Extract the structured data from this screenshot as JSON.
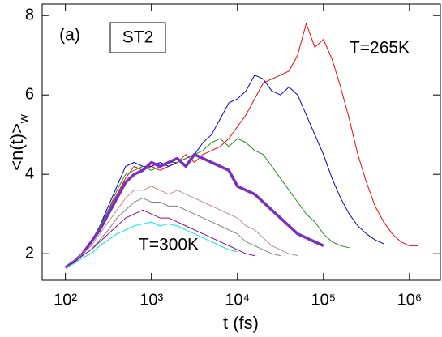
{
  "chart_data": {
    "type": "line",
    "xscale": "log",
    "xlabel": "t (fs)",
    "ylabel": "<n(t)>",
    "ylabel_sub": "w",
    "annotations": [
      "(a)",
      "ST2",
      "T=265K",
      "T=300K"
    ],
    "xlim": [
      53.7,
      2290000
    ],
    "ylim": [
      1.33,
      8.29
    ],
    "xticks": [
      {
        "value": 100,
        "label": "10²"
      },
      {
        "value": 1000,
        "label": "10³"
      },
      {
        "value": 10000,
        "label": "10⁴"
      },
      {
        "value": 100000,
        "label": "10⁵"
      },
      {
        "value": 1000000,
        "label": "10⁶"
      }
    ],
    "yticks": [
      2,
      4,
      6,
      8
    ],
    "series": [
      {
        "color": "#ff0000",
        "linewidth": 1,
        "x": [
          100,
          126,
          158,
          200,
          251,
          316,
          398,
          501,
          631,
          794,
          1000,
          1259,
          1585,
          1995,
          2512,
          3162,
          3981,
          5012,
          6310,
          7943,
          10000,
          12589,
          15849,
          19953,
          25119,
          31623,
          39811,
          50119,
          63096,
          79433,
          100000,
          125893,
          158489,
          199526,
          251189,
          316228,
          398107,
          501187,
          630957,
          794328,
          1000000,
          1258925
        ],
        "values": [
          1.65,
          1.8,
          2.0,
          2.3,
          2.7,
          3.1,
          3.5,
          3.9,
          4.2,
          4.1,
          4.2,
          4.1,
          4.2,
          4.3,
          4.5,
          4.3,
          4.5,
          4.6,
          4.7,
          4.9,
          5.2,
          5.5,
          5.9,
          6.3,
          6.4,
          6.5,
          6.6,
          7.0,
          7.8,
          7.2,
          7.4,
          6.9,
          6.2,
          5.4,
          4.5,
          3.8,
          3.2,
          2.8,
          2.5,
          2.3,
          2.2,
          2.2
        ]
      },
      {
        "color": "#0000dd",
        "linewidth": 1,
        "x": [
          100,
          126,
          158,
          200,
          251,
          316,
          398,
          501,
          631,
          794,
          1000,
          1259,
          1585,
          1995,
          2512,
          3162,
          3981,
          5012,
          6310,
          7943,
          10000,
          12589,
          15849,
          19953,
          25119,
          31623,
          39811,
          50119,
          63096,
          79433,
          100000,
          125893,
          158489,
          199526,
          251189,
          316228,
          398107,
          501187
        ],
        "values": [
          1.65,
          1.8,
          2.0,
          2.3,
          2.7,
          3.2,
          3.7,
          4.2,
          4.3,
          4.2,
          4.2,
          4.3,
          4.2,
          4.3,
          4.4,
          4.5,
          4.8,
          5.0,
          5.4,
          5.8,
          5.9,
          6.1,
          6.5,
          6.4,
          6.1,
          6.0,
          6.2,
          6.0,
          5.5,
          5.0,
          4.5,
          3.9,
          3.4,
          3.0,
          2.7,
          2.5,
          2.35,
          2.25
        ]
      },
      {
        "color": "#228b22",
        "linewidth": 1,
        "x": [
          100,
          126,
          158,
          200,
          251,
          316,
          398,
          501,
          631,
          794,
          1000,
          1259,
          1585,
          1995,
          2512,
          3162,
          3981,
          5012,
          6310,
          7943,
          10000,
          12589,
          15849,
          19953,
          25119,
          31623,
          39811,
          50119,
          63096,
          79433,
          100000,
          125893,
          158489,
          199526
        ],
        "values": [
          1.65,
          1.8,
          2.0,
          2.3,
          2.7,
          3.1,
          3.6,
          4.0,
          4.1,
          4.2,
          4.1,
          4.2,
          4.3,
          4.3,
          4.4,
          4.5,
          4.6,
          4.8,
          4.9,
          4.7,
          4.9,
          4.8,
          4.6,
          4.5,
          4.2,
          3.9,
          3.6,
          3.3,
          3.0,
          2.8,
          2.5,
          2.3,
          2.2,
          2.15
        ]
      },
      {
        "color": "#7b2fbe",
        "linewidth": 3.5,
        "x": [
          100,
          126,
          158,
          200,
          251,
          316,
          398,
          501,
          631,
          794,
          1000,
          1259,
          1585,
          1995,
          2512,
          3162,
          3981,
          5012,
          6310,
          7943,
          10000,
          12589,
          15849,
          19953,
          25119,
          31623,
          39811,
          50119,
          63096,
          79433,
          100000
        ],
        "values": [
          1.65,
          1.8,
          2.0,
          2.3,
          2.6,
          3.0,
          3.4,
          3.8,
          4.0,
          4.1,
          4.3,
          4.2,
          4.3,
          4.4,
          4.2,
          4.5,
          4.4,
          4.3,
          4.2,
          4.1,
          3.7,
          3.6,
          3.5,
          3.3,
          3.1,
          2.9,
          2.7,
          2.5,
          2.4,
          2.3,
          2.2
        ]
      },
      {
        "color": "#bc8f8f",
        "linewidth": 1,
        "x": [
          100,
          126,
          158,
          200,
          251,
          316,
          398,
          501,
          631,
          794,
          1000,
          1259,
          1585,
          1995,
          2512,
          3162,
          3981,
          5012,
          6310,
          7943,
          10000,
          12589,
          15849,
          19953,
          25119,
          31623,
          39811,
          50119
        ],
        "values": [
          1.65,
          1.8,
          2.0,
          2.2,
          2.5,
          2.8,
          3.1,
          3.4,
          3.6,
          3.6,
          3.7,
          3.6,
          3.5,
          3.6,
          3.5,
          3.4,
          3.3,
          3.2,
          3.1,
          3.0,
          2.9,
          2.7,
          2.6,
          2.4,
          2.2,
          2.1,
          2.0,
          1.95
        ]
      },
      {
        "color": "#808080",
        "linewidth": 1,
        "x": [
          100,
          126,
          158,
          200,
          251,
          316,
          398,
          501,
          631,
          794,
          1000,
          1259,
          1585,
          1995,
          2512,
          3162,
          3981,
          5012,
          6310,
          7943,
          10000,
          12589,
          15849,
          19953,
          25119,
          31623
        ],
        "values": [
          1.65,
          1.8,
          1.95,
          2.1,
          2.35,
          2.6,
          2.9,
          3.1,
          3.3,
          3.4,
          3.3,
          3.3,
          3.2,
          3.2,
          3.1,
          3.0,
          2.9,
          2.8,
          2.7,
          2.6,
          2.5,
          2.3,
          2.2,
          2.1,
          2.0,
          1.95
        ]
      },
      {
        "color": "#9400a0",
        "linewidth": 1,
        "x": [
          100,
          126,
          158,
          200,
          251,
          316,
          398,
          501,
          631,
          794,
          1000,
          1259,
          1585,
          1995,
          2512,
          3162,
          3981,
          5012,
          6310,
          7943,
          10000,
          12589,
          15849
        ],
        "values": [
          1.65,
          1.8,
          1.95,
          2.1,
          2.3,
          2.5,
          2.7,
          2.9,
          3.0,
          3.1,
          3.0,
          2.9,
          2.9,
          2.8,
          2.7,
          2.6,
          2.5,
          2.4,
          2.3,
          2.2,
          2.1,
          2.0,
          1.95
        ]
      },
      {
        "color": "#00e5ee",
        "linewidth": 1,
        "x": [
          100,
          126,
          158,
          200,
          251,
          316,
          398,
          501,
          631,
          794,
          1000,
          1259,
          1585,
          1995,
          2512,
          3162,
          3981,
          5012,
          6310,
          7943,
          10000
        ],
        "values": [
          1.65,
          1.75,
          1.9,
          2.0,
          2.2,
          2.35,
          2.5,
          2.6,
          2.7,
          2.75,
          2.8,
          2.7,
          2.75,
          2.7,
          2.6,
          2.5,
          2.4,
          2.3,
          2.2,
          2.1,
          2.05
        ]
      }
    ]
  }
}
